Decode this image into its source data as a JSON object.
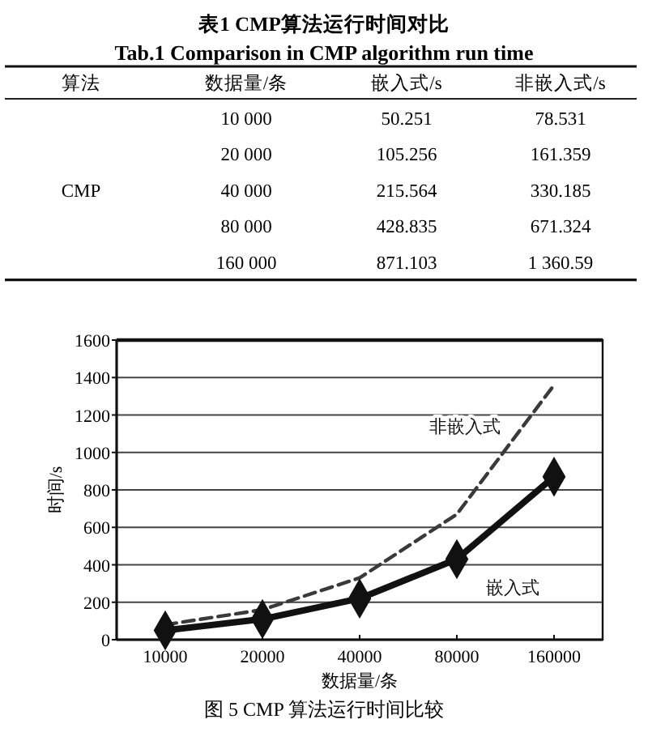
{
  "chart_data": [
    {
      "type": "other",
      "title": "表1 CMP算法运行时间对比",
      "subtitle": "Tab.1 Comparison in CMP algorithm run time",
      "annotations": [
        "算法",
        "数据量/条",
        "嵌入式/s",
        "非嵌入式/s",
        "CMP",
        "10 000",
        "50.251",
        "78.531",
        "20 000",
        "105.256",
        "161.359",
        "40 000",
        "215.564",
        "330.185",
        "80 000",
        "428.835",
        "671.324",
        "160 000",
        "871.103",
        "1 360.59"
      ]
    },
    {
      "type": "line",
      "categories": [
        "10000",
        "20000",
        "40000",
        "80000",
        "160000"
      ],
      "series": [
        {
          "name": "非嵌入式",
          "color": "#3a3a3a",
          "line_style": "dashed",
          "marker": "none",
          "values": [
            80,
            160,
            330,
            670,
            1360
          ]
        },
        {
          "name": "嵌入式",
          "color": "#111111",
          "line_style": "solid",
          "marker": "diamond",
          "values": [
            50,
            110,
            220,
            430,
            870
          ]
        }
      ],
      "ylim": [
        0,
        1600
      ],
      "yticks": [
        0,
        200,
        400,
        600,
        800,
        1000,
        1200,
        1400,
        1600
      ],
      "grid": "y",
      "xlabel": "数据量/条",
      "ylabel": "时间/s",
      "annotations": [
        "图 5 CMP 算法运行时间比较"
      ]
    }
  ]
}
